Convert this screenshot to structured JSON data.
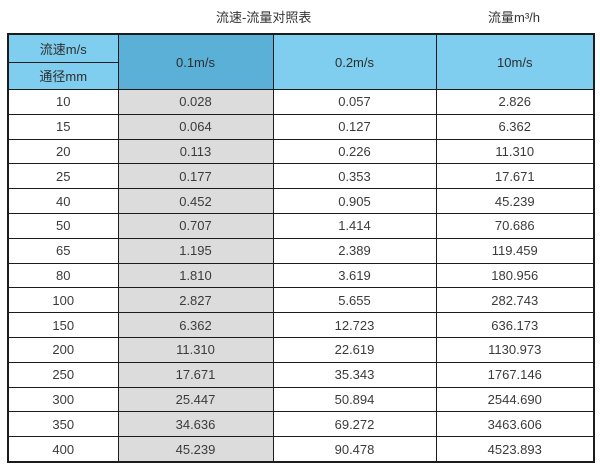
{
  "caption": {
    "title": "流速-流量对照表",
    "unit": "流量m³/h"
  },
  "colors": {
    "header_light_blue": "#7fceef",
    "header_selected_blue": "#5bb0d7",
    "highlight_column_gray": "#dcdcdc",
    "border": "#1c1c1c",
    "text": "#3b3b3b"
  },
  "chart_data": {
    "type": "table",
    "title": "流速-流量对照表",
    "unit_label": "流量m³/h",
    "row_header": {
      "top": "流速m/s",
      "bottom": "通径mm"
    },
    "columns": [
      "0.1m/s",
      "0.2m/s",
      "10m/s"
    ],
    "rows": [
      [
        "10",
        "0.028",
        "0.057",
        "2.826"
      ],
      [
        "15",
        "0.064",
        "0.127",
        "6.362"
      ],
      [
        "20",
        "0.113",
        "0.226",
        "11.310"
      ],
      [
        "25",
        "0.177",
        "0.353",
        "17.671"
      ],
      [
        "40",
        "0.452",
        "0.905",
        "45.239"
      ],
      [
        "50",
        "0.707",
        "1.414",
        "70.686"
      ],
      [
        "65",
        "1.195",
        "2.389",
        "119.459"
      ],
      [
        "80",
        "1.810",
        "3.619",
        "180.956"
      ],
      [
        "100",
        "2.827",
        "5.655",
        "282.743"
      ],
      [
        "150",
        "6.362",
        "12.723",
        "636.173"
      ],
      [
        "200",
        "11.310",
        "22.619",
        "1130.973"
      ],
      [
        "250",
        "17.671",
        "35.343",
        "1767.146"
      ],
      [
        "300",
        "25.447",
        "50.894",
        "2544.690"
      ],
      [
        "350",
        "34.636",
        "69.272",
        "3463.606"
      ],
      [
        "400",
        "45.239",
        "90.478",
        "4523.893"
      ]
    ]
  }
}
